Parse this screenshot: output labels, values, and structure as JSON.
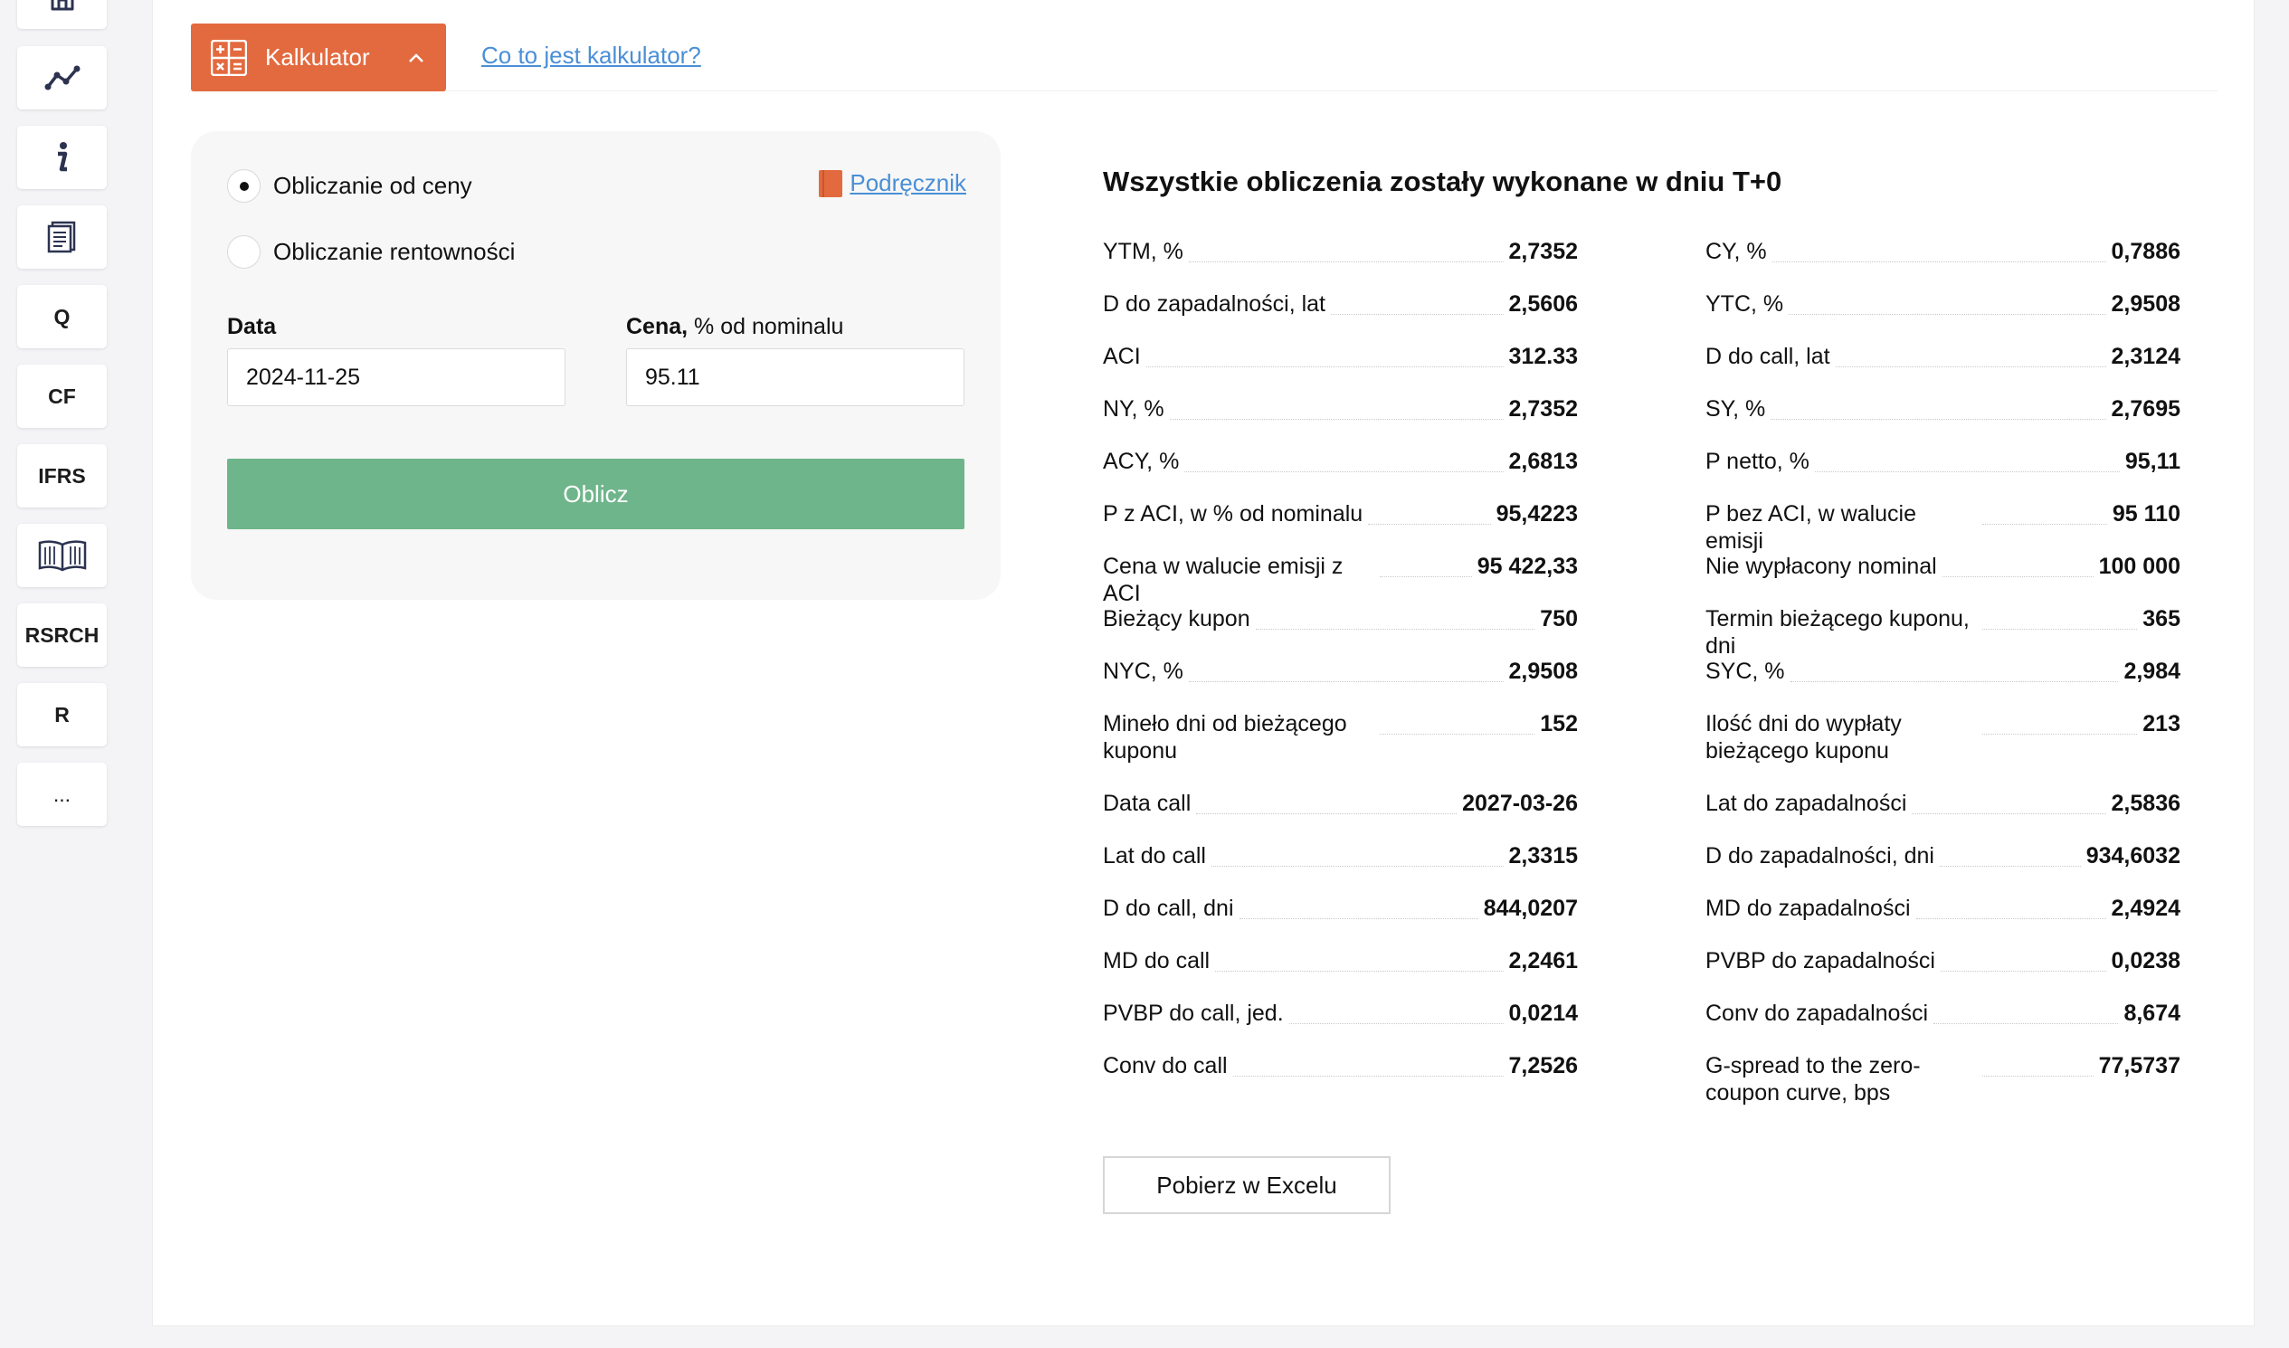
{
  "sidebar": {
    "items": [
      {
        "name": "home-icon",
        "label": ""
      },
      {
        "name": "chart-line-icon",
        "label": ""
      },
      {
        "name": "info-icon",
        "label": ""
      },
      {
        "name": "document-icon",
        "label": ""
      },
      {
        "name": "sidebar-item-q",
        "label": "Q"
      },
      {
        "name": "sidebar-item-cf",
        "label": "CF"
      },
      {
        "name": "sidebar-item-ifrs",
        "label": "IFRS"
      },
      {
        "name": "book-icon",
        "label": ""
      },
      {
        "name": "sidebar-item-rsrch",
        "label": "RSRCH"
      },
      {
        "name": "sidebar-item-r",
        "label": "R"
      },
      {
        "name": "sidebar-item-more",
        "label": "..."
      }
    ]
  },
  "header": {
    "calc_label": "Kalkulator",
    "help_link": "Co to jest kalkulator?"
  },
  "form": {
    "radio_price": "Obliczanie od ceny",
    "radio_yield": "Obliczanie rentowności",
    "manual_link": "Podręcznik",
    "date_label": "Data",
    "date_value": "2024-11-25",
    "price_label_bold": "Cena,",
    "price_label_rest": " % od nominalu",
    "price_value": "95.11",
    "submit": "Oblicz"
  },
  "results": {
    "title": "Wszystkie obliczenia zostały wykonane w dniu T+0",
    "left": [
      {
        "name": "YTM, %",
        "value": "2,7352"
      },
      {
        "name": "D do zapadalności, lat",
        "value": "2,5606"
      },
      {
        "name": "ACI",
        "value": "312.33"
      },
      {
        "name": "NY, %",
        "value": "2,7352"
      },
      {
        "name": "ACY, %",
        "value": "2,6813"
      },
      {
        "name": "P z ACI, w % od nominalu",
        "value": "95,4223"
      },
      {
        "name": "Cena w walucie emisji z ACI",
        "value": "95 422,33"
      },
      {
        "name": "Bieżący kupon",
        "value": "750"
      },
      {
        "name": "NYC, %",
        "value": "2,9508"
      },
      {
        "name": "Mineło dni od bieżącego kuponu",
        "value": "152"
      },
      {
        "name": "Data call",
        "value": "2027-03-26"
      },
      {
        "name": "Lat do call",
        "value": "2,3315"
      },
      {
        "name": "D do call, dni",
        "value": "844,0207"
      },
      {
        "name": "MD do call",
        "value": "2,2461"
      },
      {
        "name": "PVBP do call, jed.",
        "value": "0,0214"
      },
      {
        "name": "Conv do call",
        "value": "7,2526"
      }
    ],
    "right": [
      {
        "name": "CY, %",
        "value": "0,7886"
      },
      {
        "name": "YTC, %",
        "value": "2,9508"
      },
      {
        "name": "D do call, lat",
        "value": "2,3124"
      },
      {
        "name": "SY, %",
        "value": "2,7695"
      },
      {
        "name": "P netto, %",
        "value": "95,11"
      },
      {
        "name": "P bez ACI, w walucie emisji",
        "value": "95 110"
      },
      {
        "name": "Nie wypłacony nominal",
        "value": "100 000"
      },
      {
        "name": "Termin bieżącego kuponu, dni",
        "value": "365"
      },
      {
        "name": "SYC, %",
        "value": "2,984"
      },
      {
        "name": "Ilość dni do wypłaty bieżącego kuponu",
        "value": "213"
      },
      {
        "name": "Lat do zapadalności",
        "value": "2,5836"
      },
      {
        "name": "D do zapadalności, dni",
        "value": "934,6032"
      },
      {
        "name": "MD do zapadalności",
        "value": "2,4924"
      },
      {
        "name": "PVBP do zapadalności",
        "value": "0,0238"
      },
      {
        "name": "Conv do zapadalności",
        "value": "8,674"
      },
      {
        "name": "G-spread to the zero-coupon curve, bps",
        "value": "77,5737"
      }
    ],
    "excel_button": "Pobierz w Excelu"
  }
}
